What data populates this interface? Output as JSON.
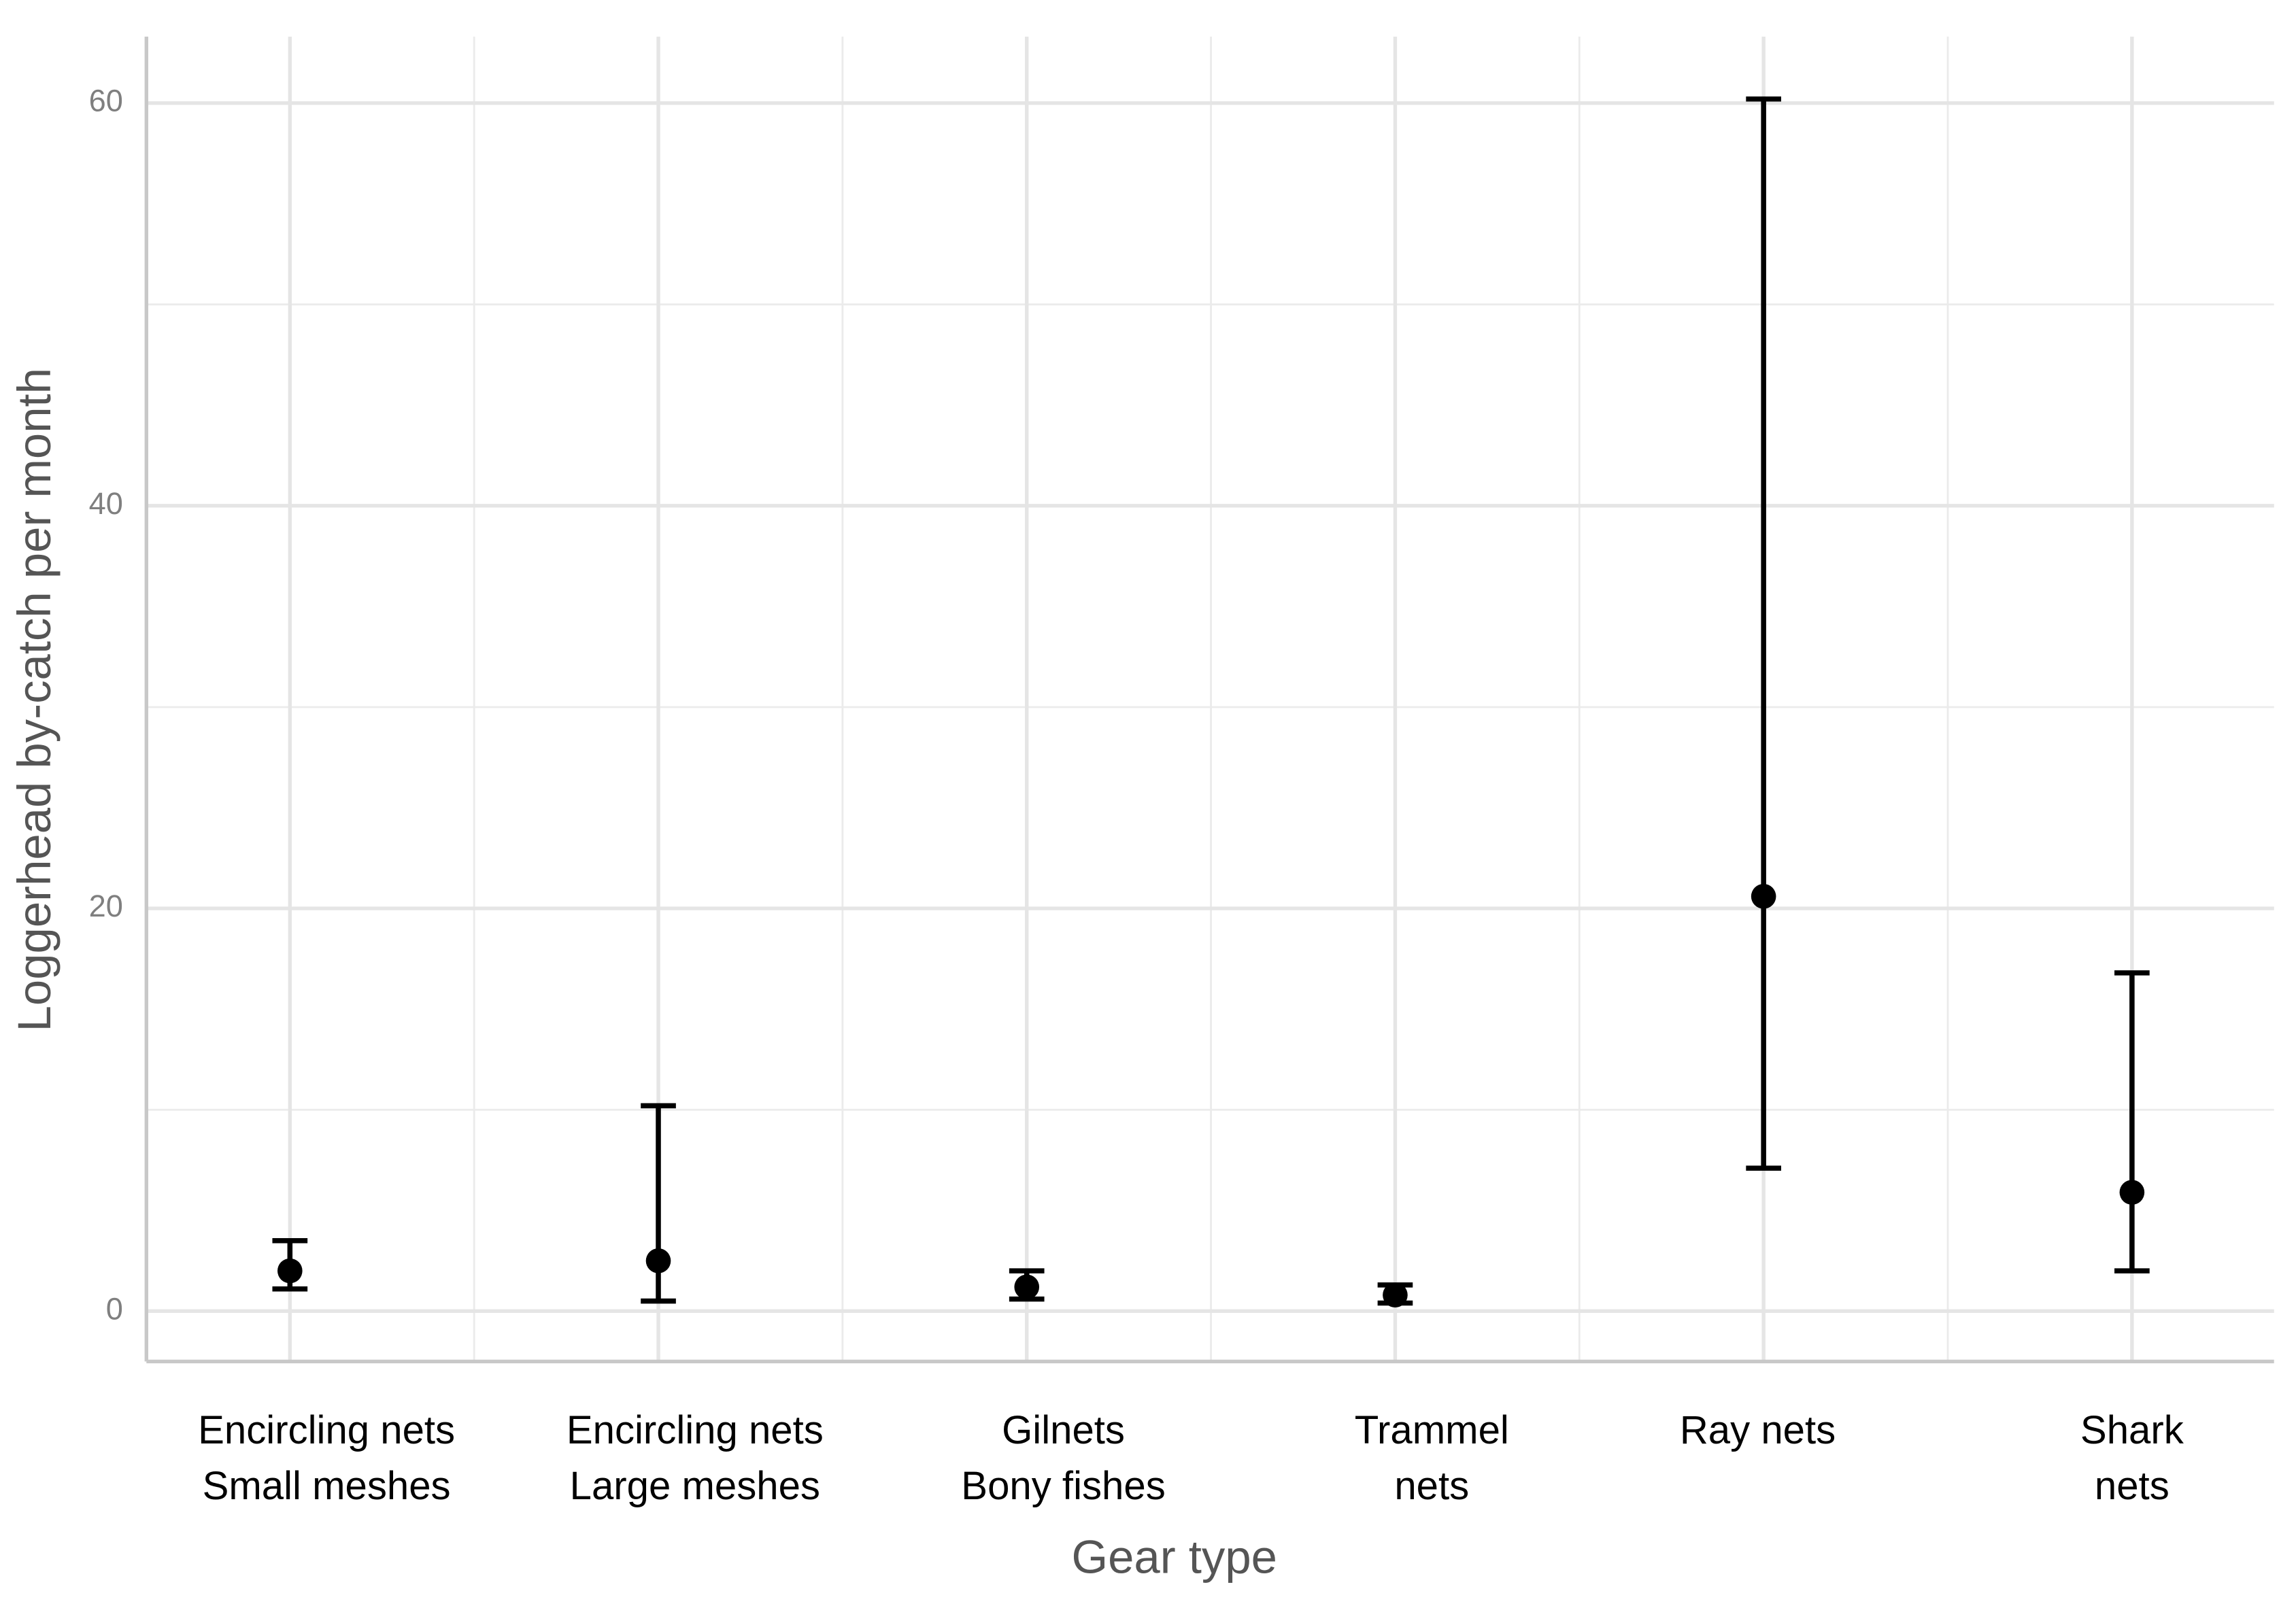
{
  "chart_data": {
    "type": "pointrange",
    "x_label": "Gear type",
    "y_label": "Loggerhead by-catch per month",
    "categories": [
      [
        "Encircling nets",
        "Small meshes"
      ],
      [
        "Encircling nets",
        "Large meshes"
      ],
      [
        "Gilnets",
        "Bony fishes"
      ],
      [
        "Trammel",
        "nets"
      ],
      [
        "Ray nets"
      ],
      [
        "Shark",
        "nets"
      ]
    ],
    "series": [
      {
        "color": "#000000",
        "values": [
          2.0,
          2.5,
          1.2,
          0.8,
          20.6,
          5.9
        ],
        "lower": [
          1.1,
          0.5,
          0.6,
          0.4,
          7.1,
          2.0
        ],
        "upper": [
          3.5,
          10.2,
          2.0,
          1.3,
          60.2,
          16.8
        ]
      }
    ],
    "ylim": [
      -2.5,
      63.3
    ],
    "yticks": [
      0,
      20,
      40,
      60
    ],
    "minor_yticks": [
      10,
      30,
      50
    ],
    "grid": true
  }
}
